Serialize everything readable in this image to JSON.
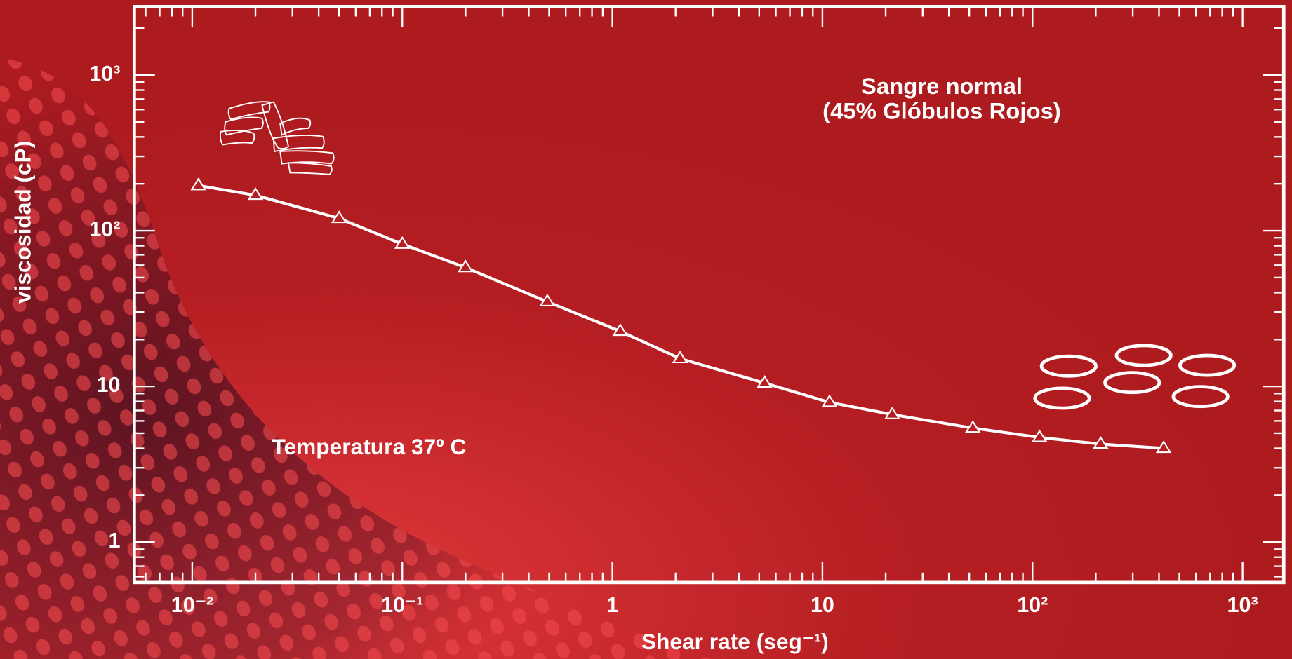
{
  "chart_data": {
    "type": "line",
    "title": "Sangre normal",
    "subtitle": "(45% Glóbulos Rojos)",
    "annotation": "Temperatura 37º C",
    "x_label": "Shear rate (seg⁻¹)",
    "y_label": "viscosidad (cP)",
    "log_x": true,
    "log_y": true,
    "color": "#ffffff",
    "marker": "triangle",
    "x": [
      0.0107,
      0.02,
      0.05,
      0.1,
      0.2,
      0.49,
      1.09,
      2.1,
      5.3,
      10.8,
      21.5,
      52,
      108,
      211,
      421
    ],
    "values": [
      195,
      169,
      120,
      82,
      58,
      35,
      22.6,
      15.1,
      10.5,
      7.9,
      6.6,
      5.4,
      4.7,
      4.26,
      4.0
    ],
    "xlim": [
      0.0053,
      1570
    ],
    "ylim": [
      0.55,
      2750
    ],
    "xticks": [
      {
        "value": 0.01,
        "label": "10⁻²"
      },
      {
        "value": 0.1,
        "label": "10⁻¹"
      },
      1,
      10,
      {
        "value": 100,
        "label": "10²"
      },
      {
        "value": 1000,
        "label": "10³"
      }
    ],
    "yticks": [
      1,
      10,
      {
        "value": 100,
        "label": "10²"
      },
      {
        "value": 1000,
        "label": "10³"
      }
    ],
    "xminor_ticks": [
      0.006,
      0.007,
      0.008,
      0.009,
      0.02,
      0.03,
      0.04,
      0.05,
      0.06,
      0.07,
      0.08,
      0.09,
      0.2,
      0.3,
      0.4,
      0.5,
      0.6,
      0.7,
      0.8,
      0.9,
      2,
      3,
      4,
      5,
      6,
      7,
      8,
      9,
      20,
      30,
      40,
      50,
      60,
      70,
      80,
      90,
      200,
      300,
      400,
      500,
      600,
      700,
      800,
      900
    ],
    "yminor_ticks": [
      0.6,
      0.7,
      0.8,
      0.9,
      2,
      3,
      4,
      5,
      6,
      7,
      8,
      9,
      20,
      30,
      40,
      50,
      60,
      70,
      80,
      90,
      200,
      300,
      400,
      500,
      600,
      700,
      800,
      900,
      2000
    ]
  }
}
